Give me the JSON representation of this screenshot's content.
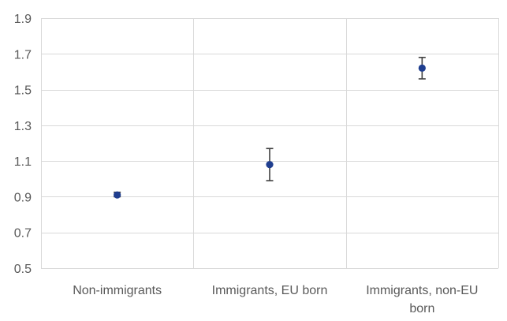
{
  "chart_data": {
    "type": "scatter",
    "title": "",
    "xlabel": "",
    "ylabel": "",
    "ylim": [
      0.5,
      1.9
    ],
    "yticks": [
      "0.5",
      "0.7",
      "0.9",
      "1.1",
      "1.3",
      "1.5",
      "1.7",
      "1.9"
    ],
    "grid": true,
    "legend": "none",
    "categories": [
      {
        "lines": [
          "Non-immigrants"
        ]
      },
      {
        "lines": [
          "Immigrants, EU born"
        ]
      },
      {
        "lines": [
          "Immigrants, non-EU",
          "born"
        ]
      }
    ],
    "series": [
      {
        "color": "#1f3e8f",
        "values": [
          0.91,
          1.08,
          1.62
        ],
        "error_low": [
          0.9,
          0.99,
          1.56
        ],
        "error_high": [
          0.925,
          1.17,
          1.68
        ]
      }
    ]
  }
}
